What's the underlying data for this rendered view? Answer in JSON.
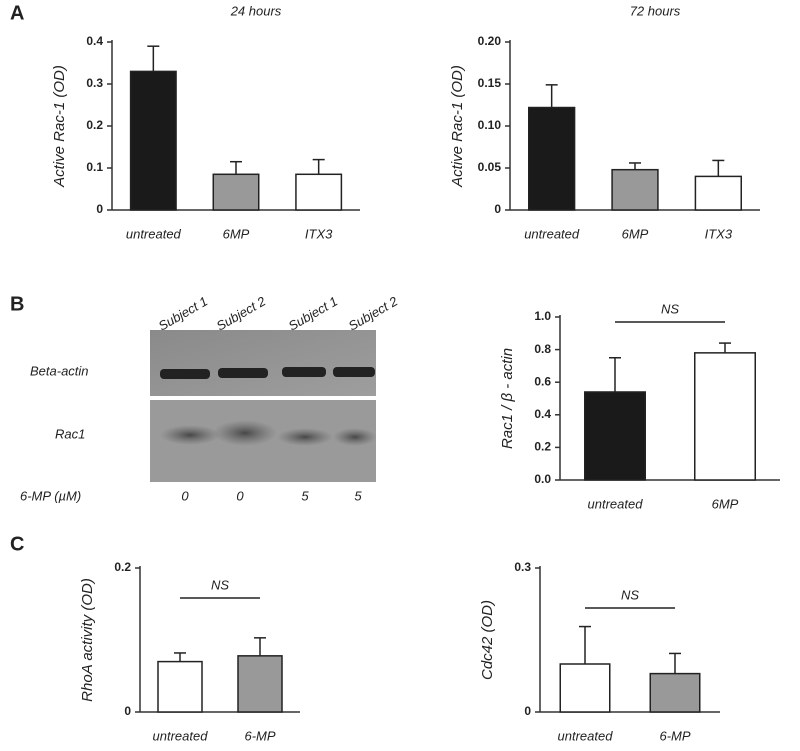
{
  "panels": [
    "A",
    "B",
    "C"
  ],
  "blot": {
    "lanes": [
      "Subject 1",
      "Subject 2",
      "Subject 1",
      "Subject 2"
    ],
    "rows": [
      "Beta-actin",
      "Rac1"
    ],
    "dose_label": "6-MP (µM)",
    "doses": [
      "0",
      "0",
      "5",
      "5"
    ]
  },
  "chart_data": [
    {
      "type": "bar",
      "title": "24 hours",
      "ylabel": "Active Rac-1 (OD)",
      "categories": [
        "untreated",
        "6MP",
        "ITX3"
      ],
      "values": [
        0.33,
        0.085,
        0.085
      ],
      "errors": [
        0.06,
        0.03,
        0.035
      ],
      "colors": [
        "#1a1a1a",
        "#999999",
        "#ffffff"
      ],
      "ylim": [
        0,
        0.4
      ],
      "yticks": [
        0,
        0.1,
        0.2,
        0.3,
        0.4
      ]
    },
    {
      "type": "bar",
      "title": "72 hours",
      "ylabel": "Active Rac-1 (OD)",
      "categories": [
        "untreated",
        "6MP",
        "ITX3"
      ],
      "values": [
        0.122,
        0.048,
        0.04
      ],
      "errors": [
        0.027,
        0.008,
        0.019
      ],
      "colors": [
        "#1a1a1a",
        "#999999",
        "#ffffff"
      ],
      "ylim": [
        0,
        0.2
      ],
      "yticks": [
        0,
        0.05,
        {
          "value": 0.1,
          "label": "0.10"
        },
        0.15,
        {
          "value": 0.2,
          "label": "0.20"
        }
      ]
    },
    {
      "type": "bar",
      "ylabel": "Rac1 / β - actin",
      "categories": [
        "untreated",
        "6MP"
      ],
      "values": [
        0.54,
        0.78
      ],
      "errors": [
        0.21,
        0.06
      ],
      "colors": [
        "#1a1a1a",
        "#ffffff"
      ],
      "annotation": "NS",
      "ylim": [
        0,
        1
      ],
      "yticks": [
        {
          "value": 0,
          "label": "0.0"
        },
        0.2,
        0.4,
        0.6,
        0.8,
        {
          "value": 1,
          "label": "1.0"
        }
      ]
    },
    {
      "type": "bar",
      "ylabel": "RhoA activity (OD)",
      "categories": [
        "untreated",
        "6-MP"
      ],
      "values": [
        0.07,
        0.078
      ],
      "errors": [
        0.012,
        0.025
      ],
      "colors": [
        "#ffffff",
        "#999999"
      ],
      "annotation": "NS",
      "ylim": [
        0,
        0.2
      ],
      "yticks": [
        0,
        0.2
      ]
    },
    {
      "type": "bar",
      "ylabel": "Cdc42 (OD)",
      "categories": [
        "untreated",
        "6-MP"
      ],
      "values": [
        0.1,
        0.08
      ],
      "errors": [
        0.078,
        0.042
      ],
      "colors": [
        "#ffffff",
        "#999999"
      ],
      "annotation": "NS",
      "ylim": [
        0,
        0.3
      ],
      "yticks": [
        0,
        0.3
      ]
    }
  ]
}
